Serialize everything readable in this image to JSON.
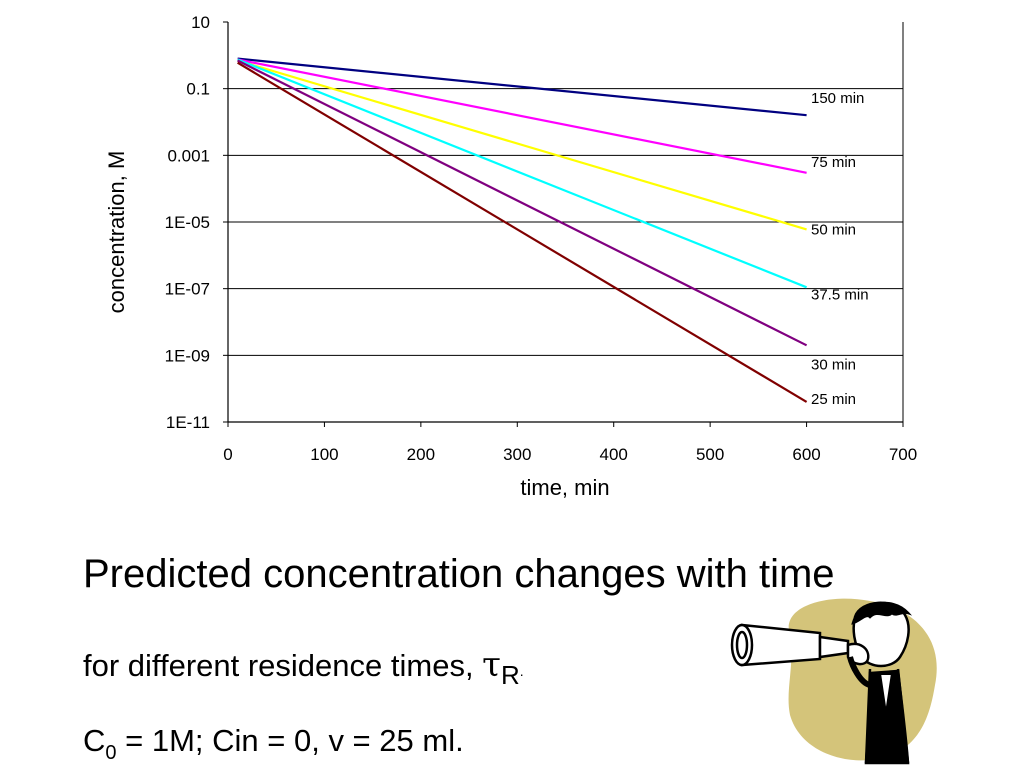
{
  "chart_data": {
    "type": "line",
    "xlabel": "time, min",
    "ylabel": "concentration, M",
    "xlim": [
      0,
      700
    ],
    "ylim": [
      1e-11,
      10
    ],
    "y_scale": "log",
    "x_ticks": [
      "0",
      "100",
      "200",
      "300",
      "400",
      "500",
      "600",
      "700"
    ],
    "y_ticks": [
      "10",
      "0.1",
      "0.001",
      "1E-05",
      "1E-07",
      "1E-09",
      "1E-11"
    ],
    "y_tick_values": [
      10,
      0.1,
      0.001,
      1e-05,
      1e-07,
      1e-09,
      1e-11
    ],
    "grid": "horizontal",
    "legend": "inline-right",
    "series": [
      {
        "name": "150 min",
        "color": "#000080",
        "x": [
          10,
          600
        ],
        "y": [
          0.8,
          0.016
        ]
      },
      {
        "name": "75 min",
        "color": "#ff00ff",
        "x": [
          10,
          600
        ],
        "y": [
          0.75,
          0.0003
        ]
      },
      {
        "name": "50 min",
        "color": "#ffff00",
        "x": [
          10,
          600
        ],
        "y": [
          0.7,
          6e-06
        ]
      },
      {
        "name": "37.5 min",
        "color": "#00ffff",
        "x": [
          10,
          600
        ],
        "y": [
          0.75,
          1.1e-07
        ]
      },
      {
        "name": "30 min",
        "color": "#800080",
        "x": [
          10,
          600
        ],
        "y": [
          0.7,
          2e-09
        ]
      },
      {
        "name": "25 min",
        "color": "#800000",
        "x": [
          10,
          600
        ],
        "y": [
          0.6,
          4e-11
        ]
      }
    ]
  },
  "caption": {
    "title": "Predicted concentration changes with time",
    "sub_text": "for different residence times, ",
    "tau": "τ",
    "sub_r": "R",
    "sub_end": ".",
    "c": "C",
    "c_sub": "0",
    "params": " = 1M; Cin = 0, v = 25 ml."
  },
  "clipart": {
    "icon": "person-with-telescope-icon",
    "blob_color": "#d4c47a"
  }
}
